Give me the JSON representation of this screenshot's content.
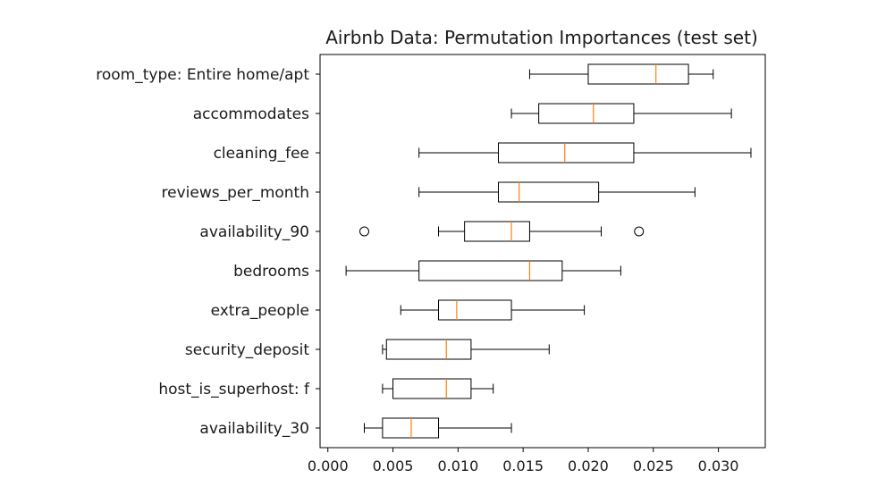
{
  "chart_data": {
    "type": "boxplot",
    "orientation": "horizontal",
    "title": "Airbnb Data: Permutation Importances (test set)",
    "xlabel": "",
    "ylabel": "",
    "xlim": [
      -0.0006,
      0.0336
    ],
    "xticks": [
      0.0,
      0.005,
      0.01,
      0.015,
      0.02,
      0.025,
      0.03
    ],
    "xtick_labels": [
      "0.000",
      "0.005",
      "0.010",
      "0.015",
      "0.020",
      "0.025",
      "0.030"
    ],
    "grid": false,
    "box_color": "#000000",
    "median_color": "#ff7f0e",
    "categories": [
      "room_type: Entire home/apt",
      "accommodates",
      "cleaning_fee",
      "reviews_per_month",
      "availability_90",
      "bedrooms",
      "extra_people",
      "security_deposit",
      "host_is_superhost: f",
      "availability_30"
    ],
    "boxes": [
      {
        "whislo": 0.0155,
        "q1": 0.02,
        "med": 0.0252,
        "q3": 0.0277,
        "whishi": 0.0296,
        "fliers": []
      },
      {
        "whislo": 0.0141,
        "q1": 0.0162,
        "med": 0.0204,
        "q3": 0.0235,
        "whishi": 0.031,
        "fliers": []
      },
      {
        "whislo": 0.007,
        "q1": 0.0131,
        "med": 0.0182,
        "q3": 0.0235,
        "whishi": 0.0325,
        "fliers": []
      },
      {
        "whislo": 0.007,
        "q1": 0.0131,
        "med": 0.0147,
        "q3": 0.0208,
        "whishi": 0.0282,
        "fliers": []
      },
      {
        "whislo": 0.0085,
        "q1": 0.0105,
        "med": 0.0141,
        "q3": 0.0155,
        "whishi": 0.021,
        "fliers": [
          0.0028,
          0.0239
        ]
      },
      {
        "whislo": 0.0014,
        "q1": 0.007,
        "med": 0.0155,
        "q3": 0.018,
        "whishi": 0.0225,
        "fliers": []
      },
      {
        "whislo": 0.0056,
        "q1": 0.0085,
        "med": 0.0099,
        "q3": 0.0141,
        "whishi": 0.0197,
        "fliers": []
      },
      {
        "whislo": 0.0042,
        "q1": 0.0045,
        "med": 0.0091,
        "q3": 0.011,
        "whishi": 0.017,
        "fliers": []
      },
      {
        "whislo": 0.0042,
        "q1": 0.005,
        "med": 0.0091,
        "q3": 0.011,
        "whishi": 0.0127,
        "fliers": []
      },
      {
        "whislo": 0.0028,
        "q1": 0.0042,
        "med": 0.0064,
        "q3": 0.0085,
        "whishi": 0.0141,
        "fliers": []
      }
    ]
  }
}
